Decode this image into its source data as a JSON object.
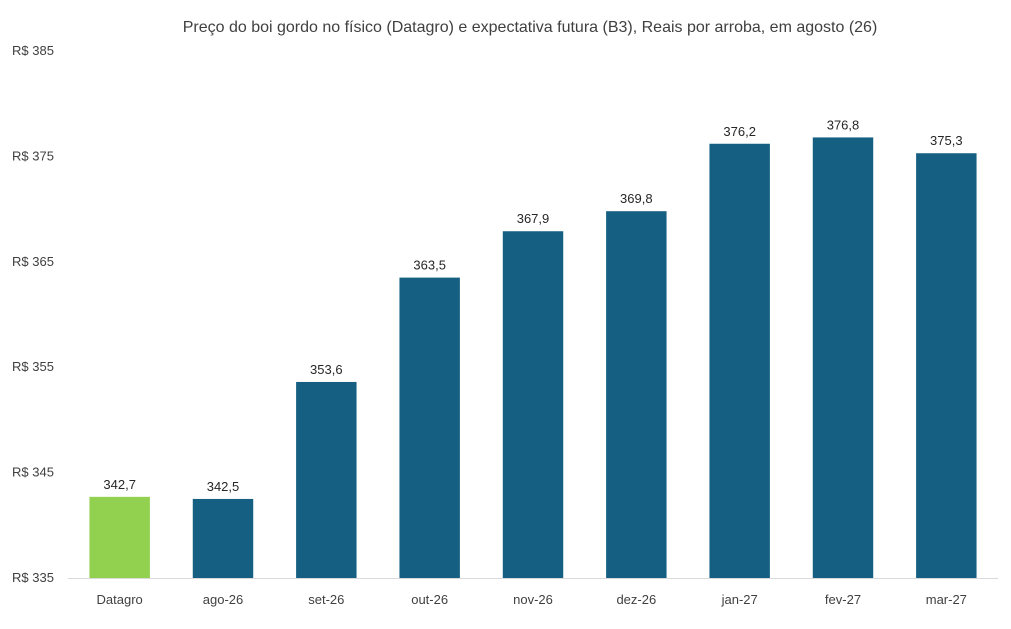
{
  "chart_data": {
    "type": "bar",
    "title": "Preço do boi gordo no físico (Datagro)  e expectativa futura (B3), Reais por arroba, em agosto (26)",
    "xlabel": "",
    "ylabel": "",
    "categories": [
      "Datagro",
      "ago-26",
      "set-26",
      "out-26",
      "nov-26",
      "dez-26",
      "jan-27",
      "fev-27",
      "mar-27"
    ],
    "values": [
      342.7,
      342.5,
      353.6,
      363.5,
      367.9,
      369.8,
      376.2,
      376.8,
      375.3
    ],
    "data_labels": [
      "342,7",
      "342,5",
      "353,6",
      "363,5",
      "367,9",
      "369,8",
      "376,2",
      "376,8",
      "375,3"
    ],
    "ylim": [
      335,
      385
    ],
    "y_ticks": [
      335,
      345,
      355,
      365,
      375,
      385
    ],
    "y_tick_labels": [
      "R$ 335",
      "R$ 345",
      "R$ 355",
      "R$ 365",
      "R$ 375",
      "R$ 385"
    ],
    "bar_colors": [
      "#92d050",
      "#156082",
      "#156082",
      "#156082",
      "#156082",
      "#156082",
      "#156082",
      "#156082",
      "#156082"
    ],
    "grid": false,
    "legend": "none",
    "axis_color": "#d9d9d9"
  }
}
